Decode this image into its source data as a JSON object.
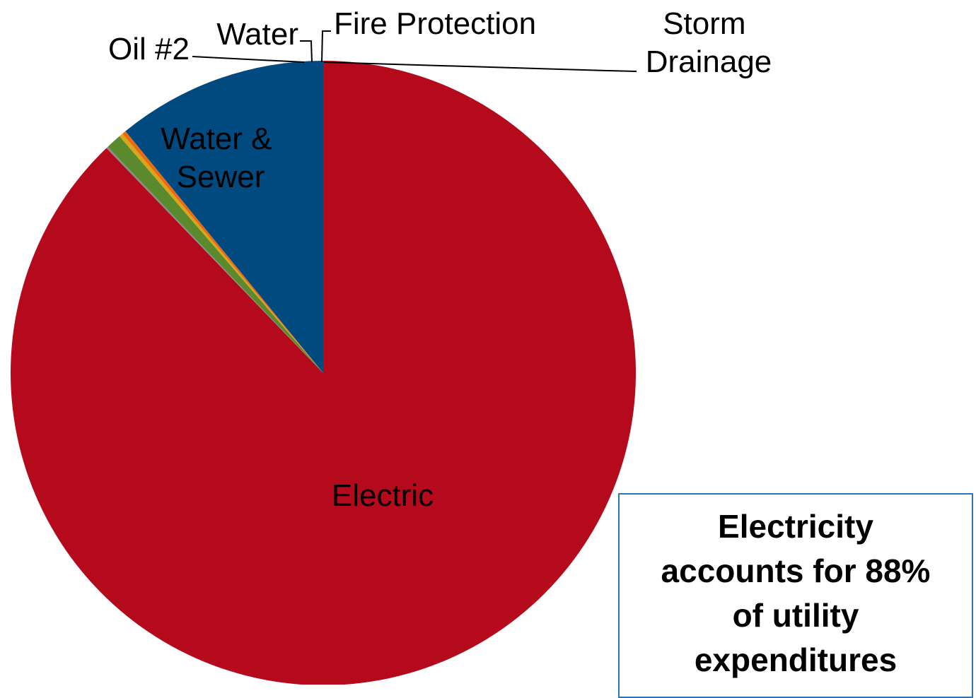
{
  "chart_data": {
    "type": "pie",
    "categories": [
      "Electric",
      "Water & Sewer",
      "Oil #2",
      "Water",
      "Fire Protection",
      "Storm Drainage"
    ],
    "values": [
      87.8,
      10.9,
      0.2,
      0.2,
      0.8,
      0.1
    ],
    "colors": [
      "#b5091c",
      "#004a7f",
      "#ea6b0f",
      "#d9a51c",
      "#5a8a2d",
      "#8a8a8a"
    ],
    "labels": [
      {
        "lines": [
          "Electric"
        ]
      },
      {
        "lines": [
          "Water &",
          "Sewer"
        ]
      },
      {
        "lines": [
          "Oil #2"
        ]
      },
      {
        "lines": [
          "Water"
        ]
      },
      {
        "lines": [
          "Fire Protection"
        ]
      },
      {
        "lines": [
          "Storm",
          "Drainage"
        ]
      }
    ]
  },
  "callout": {
    "text_lines": [
      "Electricity",
      "accounts for 88%",
      "of utility",
      "expenditures"
    ]
  }
}
